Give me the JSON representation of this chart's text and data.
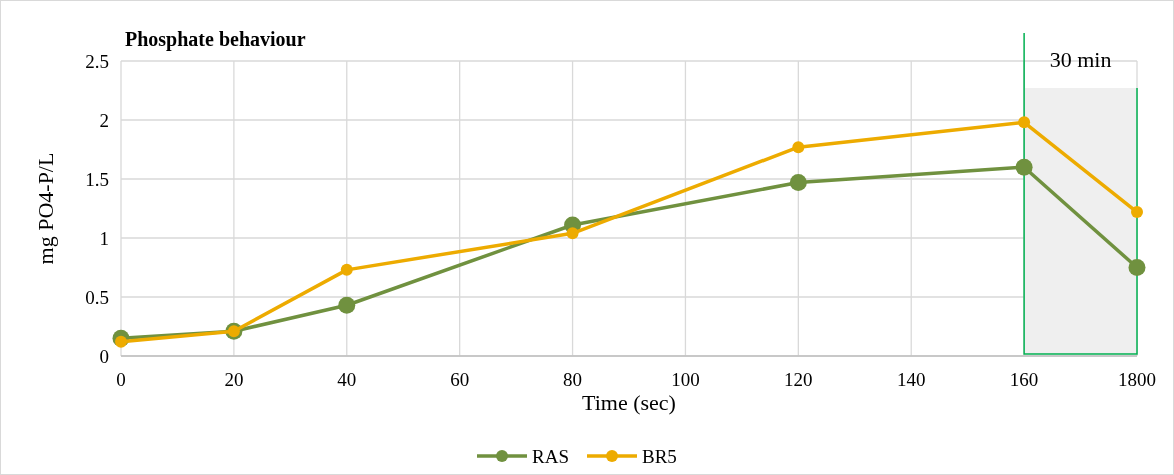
{
  "chart_data": {
    "type": "line",
    "title": "Phosphate behaviour",
    "xlabel": "Time (sec)",
    "ylabel": "mg PO4-P/L",
    "categories": [
      "0",
      "20",
      "40",
      "60",
      "80",
      "100",
      "120",
      "140",
      "160",
      "1800"
    ],
    "series": [
      {
        "name": "RAS",
        "color": "#70913f",
        "values": [
          0.15,
          0.21,
          0.43,
          null,
          1.11,
          null,
          1.47,
          null,
          1.6,
          0.75
        ]
      },
      {
        "name": "BR5",
        "color": "#edab00",
        "values": [
          0.12,
          0.21,
          0.73,
          null,
          1.04,
          null,
          1.77,
          null,
          1.98,
          1.22
        ]
      }
    ],
    "ylim": [
      0,
      2.5
    ],
    "yticks": [
      0,
      {
        "value": 0.5,
        "label": "0.5"
      },
      1,
      {
        "value": 1.5,
        "label": "1.5"
      },
      2,
      {
        "value": 2.5,
        "label": "2.5"
      }
    ],
    "grid": true,
    "legend": "bottom",
    "marker": "circle",
    "line_style": "solid",
    "bands": [
      {
        "axis": "x",
        "from": "160",
        "to": "1800",
        "label": "30 min",
        "color": "#efefef"
      }
    ]
  }
}
